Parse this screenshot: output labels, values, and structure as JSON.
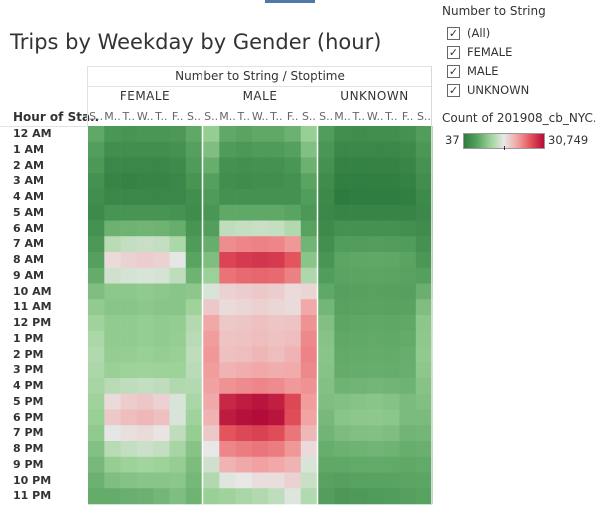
{
  "title": "Trips by Weekday by Gender (hour)",
  "column_header": "Number to String / Stoptime",
  "row_header": "Hour of Sta..",
  "filter": {
    "title": "Number to String",
    "items": [
      {
        "label": "(All)",
        "checked": "✓"
      },
      {
        "label": "FEMALE",
        "checked": "✓"
      },
      {
        "label": "MALE",
        "checked": "✓"
      },
      {
        "label": "UNKNOWN",
        "checked": "✓"
      }
    ]
  },
  "color_legend": {
    "title": "Count of 201908_cb_NYC..",
    "min_label": "37",
    "max_label": "30,749",
    "min": 37,
    "max": 30749
  },
  "colors": {
    "low": "#2e7b3f",
    "mid": "#e8e8e8",
    "high": "#b30c39"
  },
  "chart_data": {
    "type": "heatmap",
    "metric": "Count of 201908_cb_NYC..",
    "genders": [
      "FEMALE",
      "MALE",
      "UNKNOWN"
    ],
    "weekday_labels": [
      "S..",
      "M..",
      "T..",
      "W..",
      "T..",
      "F..",
      "S.."
    ],
    "hours": [
      "12 AM",
      "1 AM",
      "2 AM",
      "3 AM",
      "4 AM",
      "5 AM",
      "6 AM",
      "7 AM",
      "8 AM",
      "9 AM",
      "10 AM",
      "11 AM",
      "12 PM",
      "1 PM",
      "2 PM",
      "3 PM",
      "4 PM",
      "5 PM",
      "6 PM",
      "7 PM",
      "8 PM",
      "9 PM",
      "10 PM",
      "11 PM"
    ],
    "values": {
      "FEMALE": [
        [
          1500,
          600,
          500,
          600,
          600,
          700,
          1500
        ],
        [
          1000,
          300,
          300,
          300,
          300,
          400,
          1100
        ],
        [
          700,
          150,
          150,
          150,
          150,
          200,
          800
        ],
        [
          400,
          100,
          80,
          100,
          100,
          150,
          500
        ],
        [
          300,
          150,
          150,
          150,
          150,
          150,
          300
        ],
        [
          200,
          500,
          500,
          500,
          500,
          450,
          250
        ],
        [
          400,
          2000,
          2100,
          2200,
          2100,
          1800,
          500
        ],
        [
          700,
          5500,
          6000,
          6200,
          6000,
          5000,
          800
        ],
        [
          1100,
          8500,
          9000,
          9300,
          9000,
          7500,
          1300
        ],
        [
          1700,
          6500,
          6800,
          7000,
          6800,
          5800,
          2100
        ],
        [
          2800,
          3500,
          3500,
          3700,
          3500,
          3300,
          3500
        ],
        [
          3800,
          3300,
          3300,
          3500,
          3300,
          3300,
          4500
        ],
        [
          4500,
          3800,
          3800,
          4000,
          3800,
          3900,
          5300
        ],
        [
          5000,
          3800,
          3800,
          4000,
          3800,
          4000,
          5500
        ],
        [
          5200,
          3900,
          4000,
          4200,
          4000,
          4200,
          5800
        ],
        [
          5000,
          4200,
          4400,
          4500,
          4400,
          4400,
          5600
        ],
        [
          4800,
          5500,
          5800,
          6000,
          5800,
          5200,
          5300
        ],
        [
          4500,
          8500,
          9300,
          9600,
          9000,
          7000,
          4900
        ],
        [
          4200,
          9500,
          10200,
          10500,
          10000,
          7000,
          4500
        ],
        [
          3700,
          7500,
          8200,
          8500,
          8000,
          5800,
          4000
        ],
        [
          3000,
          5500,
          6000,
          6300,
          6000,
          4800,
          3200
        ],
        [
          2500,
          4000,
          4400,
          4600,
          4400,
          4000,
          2700
        ],
        [
          2000,
          2800,
          3100,
          3300,
          3300,
          3400,
          2400
        ],
        [
          1700,
          1700,
          1900,
          2000,
          2300,
          2800,
          2100
        ]
      ],
      "MALE": [
        [
          4000,
          1500,
          1300,
          1500,
          1500,
          2000,
          4100
        ],
        [
          2800,
          800,
          700,
          800,
          800,
          1100,
          2900
        ],
        [
          1800,
          400,
          350,
          400,
          400,
          600,
          2000
        ],
        [
          1100,
          300,
          250,
          300,
          300,
          400,
          1300
        ],
        [
          800,
          400,
          400,
          400,
          400,
          400,
          900
        ],
        [
          600,
          1500,
          1500,
          1500,
          1500,
          1300,
          700
        ],
        [
          1000,
          5800,
          6000,
          6200,
          6000,
          5200,
          1200
        ],
        [
          1800,
          14000,
          14800,
          15200,
          14800,
          13000,
          2200
        ],
        [
          2800,
          22500,
          23800,
          24500,
          23800,
          20500,
          3300
        ],
        [
          4300,
          16800,
          17800,
          18300,
          17800,
          15300,
          5100
        ],
        [
          7000,
          9000,
          9200,
          9500,
          9200,
          8500,
          8800
        ],
        [
          9500,
          8500,
          8700,
          9000,
          8700,
          8500,
          11500
        ],
        [
          11500,
          9500,
          9700,
          10000,
          9700,
          9800,
          13500
        ],
        [
          12500,
          9800,
          9900,
          10200,
          9900,
          10200,
          14500
        ],
        [
          13000,
          10000,
          10200,
          10600,
          10200,
          10800,
          15000
        ],
        [
          12500,
          10800,
          11200,
          11500,
          11200,
          11300,
          14500
        ],
        [
          12000,
          13500,
          14200,
          14800,
          14200,
          12800,
          13500
        ],
        [
          11500,
          26500,
          28300,
          29500,
          27800,
          22000,
          12500
        ],
        [
          10800,
          28500,
          30000,
          30749,
          29500,
          21500,
          11800
        ],
        [
          9500,
          20500,
          22000,
          22800,
          21500,
          16500,
          10500
        ],
        [
          7800,
          14800,
          15800,
          16500,
          15800,
          13000,
          8500
        ],
        [
          6500,
          10800,
          11500,
          12000,
          11500,
          10800,
          7000
        ],
        [
          5200,
          7300,
          7800,
          8300,
          8300,
          9000,
          6200
        ],
        [
          4200,
          4500,
          4900,
          5200,
          5800,
          7200,
          5300
        ]
      ],
      "UNKNOWN": [
        [
          900,
          300,
          250,
          300,
          300,
          400,
          900
        ],
        [
          600,
          150,
          150,
          150,
          150,
          200,
          650
        ],
        [
          400,
          80,
          70,
          80,
          80,
          120,
          450
        ],
        [
          250,
          50,
          45,
          50,
          50,
          80,
          300
        ],
        [
          180,
          37,
          40,
          40,
          40,
          50,
          200
        ],
        [
          150,
          100,
          100,
          100,
          100,
          100,
          170
        ],
        [
          200,
          400,
          400,
          420,
          400,
          350,
          250
        ],
        [
          350,
          900,
          950,
          980,
          950,
          850,
          400
        ],
        [
          550,
          1400,
          1450,
          1500,
          1450,
          1300,
          650
        ],
        [
          900,
          1300,
          1350,
          1400,
          1350,
          1200,
          1100
        ],
        [
          1500,
          1100,
          1150,
          1200,
          1150,
          1100,
          1900
        ],
        [
          2300,
          1200,
          1250,
          1300,
          1250,
          1250,
          2800
        ],
        [
          2900,
          1400,
          1450,
          1500,
          1450,
          1500,
          3400
        ],
        [
          3200,
          1500,
          1550,
          1600,
          1550,
          1650,
          3600
        ],
        [
          3300,
          1600,
          1650,
          1700,
          1650,
          1800,
          3700
        ],
        [
          3200,
          1700,
          1750,
          1800,
          1750,
          1850,
          3500
        ],
        [
          3000,
          2100,
          2200,
          2300,
          2200,
          2100,
          3200
        ],
        [
          2800,
          3000,
          3200,
          3300,
          3100,
          2600,
          2900
        ],
        [
          2500,
          3300,
          3500,
          3600,
          3400,
          2600,
          2600
        ],
        [
          2200,
          2700,
          2900,
          3000,
          2800,
          2200,
          2300
        ],
        [
          1800,
          2000,
          2100,
          2200,
          2100,
          1800,
          1900
        ],
        [
          1500,
          1500,
          1600,
          1650,
          1600,
          1500,
          1600
        ],
        [
          1200,
          1100,
          1200,
          1250,
          1250,
          1350,
          1400
        ],
        [
          1000,
          700,
          750,
          800,
          900,
          1100,
          1200
        ]
      ]
    }
  }
}
